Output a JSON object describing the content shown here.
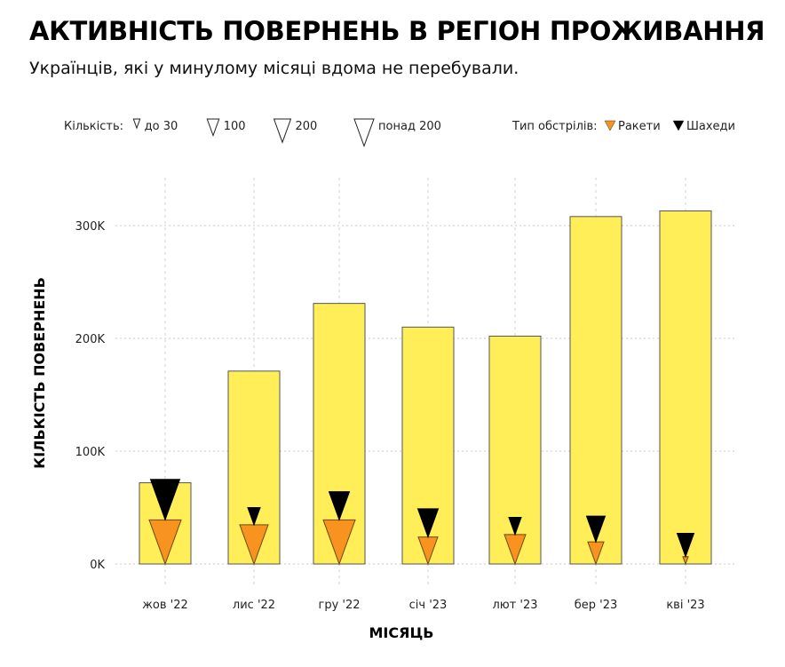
{
  "title": "АКТИВНІСТЬ ПОВЕРНЕНЬ В РЕГІОН ПРОЖИВАННЯ",
  "subtitle": "Українців, які у минулому місяці вдома не перебували.",
  "legend": {
    "size_label": "Кількість:",
    "sizes": [
      {
        "label": "до 30",
        "count": 30
      },
      {
        "label": "100",
        "count": 100
      },
      {
        "label": "200",
        "count": 200
      },
      {
        "label": "понад 200",
        "count": 270
      }
    ],
    "type_label": "Тип обстрілів:",
    "types": [
      {
        "label": "Ракети",
        "color": "#F7931E"
      },
      {
        "label": "Шахеди",
        "color": "#000000"
      }
    ]
  },
  "chart_data": {
    "type": "bar",
    "title": "АКТИВНІСТЬ ПОВЕРНЕНЬ В РЕГІОН ПРОЖИВАННЯ",
    "subtitle": "Українців, які у минулому місяці вдома не перебували.",
    "xlabel": "МІСЯЦЬ",
    "ylabel": "КІЛЬКІСТЬ ПОВЕРНЕНЬ",
    "categories": [
      "жов '22",
      "лис '22",
      "гру '22",
      "січ '23",
      "лют '23",
      "бер '23",
      "кві '23"
    ],
    "values": [
      72000,
      171000,
      231000,
      210000,
      202000,
      308000,
      313000
    ],
    "ylim": [
      0,
      340000
    ],
    "yticks": [
      0,
      100000,
      200000,
      300000
    ],
    "ytick_labels": [
      "0K",
      "100K",
      "200K",
      "300K"
    ],
    "grid": true,
    "bar_color": "#FFEE58",
    "markers": [
      {
        "name": "Ракети",
        "color": "#F7931E",
        "counts": [
          718,
          567,
          718,
          268,
          319,
          180,
          20
        ]
      },
      {
        "name": "Шахеди",
        "color": "#000000",
        "counts": [
          603,
          109,
          293,
          293,
          109,
          244,
          200
        ]
      }
    ],
    "legend_position": "top"
  }
}
